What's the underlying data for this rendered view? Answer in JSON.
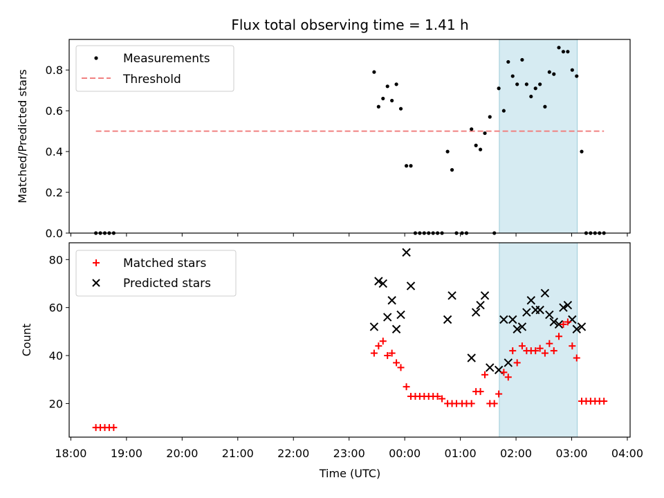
{
  "figure": {
    "title": "Flux total observing time = 1.41 h"
  },
  "chart_data": [
    {
      "type": "scatter",
      "panel": "top",
      "ylabel": "Matched/Predicted stars",
      "xlabel": "",
      "xlim": [
        17.97,
        28.05
      ],
      "ylim": [
        0.0,
        0.95
      ],
      "yticks": [
        0.0,
        0.2,
        0.4,
        0.6,
        0.8
      ],
      "ytick_labels": [
        "0.0",
        "0.2",
        "0.4",
        "0.6",
        "0.8"
      ],
      "legend": {
        "position": "top-left",
        "entries": [
          "Measurements",
          "Threshold"
        ]
      },
      "shaded_span": [
        25.7,
        27.1
      ],
      "series": [
        {
          "name": "Measurements",
          "marker": "dot",
          "color": "#000000",
          "x": [
            18.45,
            18.53,
            18.61,
            18.69,
            18.77,
            23.45,
            23.53,
            23.61,
            23.69,
            23.77,
            23.85,
            23.93,
            24.03,
            24.11,
            24.19,
            24.27,
            24.35,
            24.43,
            24.51,
            24.59,
            24.67,
            24.77,
            24.85,
            24.93,
            25.03,
            25.11,
            25.2,
            25.28,
            25.36,
            25.44,
            25.53,
            25.61,
            25.69,
            25.78,
            25.86,
            25.94,
            26.02,
            26.11,
            26.19,
            26.27,
            26.35,
            26.43,
            26.52,
            26.6,
            26.68,
            26.77,
            26.85,
            26.93,
            27.01,
            27.09,
            27.18,
            27.26,
            27.34,
            27.42,
            27.5,
            27.58
          ],
          "y": [
            0,
            0,
            0,
            0,
            0,
            0.79,
            0.62,
            0.66,
            0.72,
            0.65,
            0.73,
            0.61,
            0.33,
            0.33,
            0,
            0,
            0,
            0,
            0,
            0,
            0,
            0.4,
            0.31,
            0,
            0,
            0,
            0.51,
            0.43,
            0.41,
            0.49,
            0.57,
            0,
            0.71,
            0.6,
            0.84,
            0.77,
            0.73,
            0.85,
            0.73,
            0.67,
            0.71,
            0.73,
            0.62,
            0.79,
            0.78,
            0.91,
            0.89,
            0.89,
            0.8,
            0.77,
            0.4,
            0,
            0,
            0,
            0,
            0
          ]
        },
        {
          "name": "Threshold",
          "marker": "dashed-line",
          "color": "#f08080",
          "x": [
            18.45,
            27.58
          ],
          "y": [
            0.5,
            0.5
          ]
        }
      ]
    },
    {
      "type": "scatter",
      "panel": "bottom",
      "ylabel": "Count",
      "xlabel": "Time (UTC)",
      "xlim": [
        17.97,
        28.05
      ],
      "ylim": [
        6,
        87
      ],
      "yticks": [
        20,
        40,
        60,
        80
      ],
      "ytick_labels": [
        "20",
        "40",
        "60",
        "80"
      ],
      "xticks": [
        18,
        19,
        20,
        21,
        22,
        23,
        24,
        25,
        26,
        27,
        28
      ],
      "xtick_labels": [
        "18:00",
        "19:00",
        "20:00",
        "21:00",
        "22:00",
        "23:00",
        "00:00",
        "01:00",
        "02:00",
        "03:00",
        "04:00"
      ],
      "legend": {
        "position": "top-left",
        "entries": [
          "Matched stars",
          "Predicted stars"
        ]
      },
      "shaded_span": [
        25.7,
        27.1
      ],
      "series": [
        {
          "name": "Matched stars",
          "marker": "plus",
          "color": "#ff0000",
          "x": [
            18.45,
            18.53,
            18.61,
            18.69,
            18.77,
            23.45,
            23.53,
            23.61,
            23.69,
            23.77,
            23.85,
            23.93,
            24.03,
            24.11,
            24.19,
            24.27,
            24.35,
            24.43,
            24.51,
            24.59,
            24.67,
            24.77,
            24.85,
            24.93,
            25.03,
            25.11,
            25.2,
            25.28,
            25.36,
            25.44,
            25.53,
            25.61,
            25.69,
            25.78,
            25.86,
            25.94,
            26.02,
            26.11,
            26.19,
            26.27,
            26.35,
            26.43,
            26.52,
            26.6,
            26.68,
            26.77,
            26.85,
            26.93,
            27.01,
            27.09,
            27.18,
            27.26,
            27.34,
            27.42,
            27.5,
            27.58
          ],
          "y": [
            10,
            10,
            10,
            10,
            10,
            41,
            44,
            46,
            40,
            41,
            37,
            35,
            27,
            23,
            23,
            23,
            23,
            23,
            23,
            23,
            22,
            20,
            20,
            20,
            20,
            20,
            20,
            25,
            25,
            32,
            20,
            20,
            24,
            33,
            31,
            42,
            37,
            44,
            42,
            42,
            42,
            43,
            41,
            45,
            42,
            48,
            53,
            54,
            44,
            39,
            21,
            21,
            21,
            21,
            21,
            21
          ]
        },
        {
          "name": "Predicted stars",
          "marker": "x",
          "color": "#000000",
          "x": [
            23.45,
            23.53,
            23.61,
            23.69,
            23.77,
            23.85,
            23.93,
            24.03,
            24.11,
            24.77,
            24.85,
            25.2,
            25.28,
            25.36,
            25.44,
            25.53,
            25.69,
            25.78,
            25.86,
            25.94,
            26.02,
            26.11,
            26.19,
            26.27,
            26.35,
            26.43,
            26.52,
            26.6,
            26.68,
            26.77,
            26.85,
            26.93,
            27.01,
            27.09,
            27.18
          ],
          "y": [
            52,
            71,
            70,
            56,
            63,
            51,
            57,
            83,
            69,
            55,
            65,
            39,
            58,
            61,
            65,
            35,
            34,
            55,
            37,
            55,
            51,
            52,
            58,
            63,
            59,
            59,
            66,
            57,
            54,
            53,
            60,
            61,
            55,
            51,
            52
          ]
        }
      ]
    }
  ]
}
